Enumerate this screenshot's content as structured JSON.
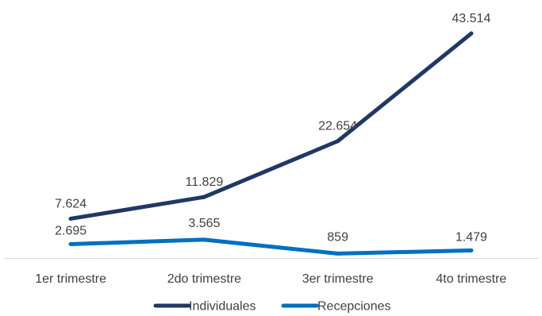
{
  "chart_data": {
    "type": "line",
    "categories": [
      "1er trimestre",
      "2do trimestre",
      "3er trimestre",
      "4to trimestre"
    ],
    "series": [
      {
        "name": "Individuales",
        "values": [
          7624,
          11829,
          22654,
          43514
        ],
        "labels": [
          "7.624",
          "11.829",
          "22.654",
          "43.514"
        ],
        "color": "#1f3864"
      },
      {
        "name": "Recepciones",
        "values": [
          2695,
          3565,
          859,
          1479
        ],
        "labels": [
          "2.695",
          "3.565",
          "859",
          "1.479"
        ],
        "color": "#0070c0"
      }
    ],
    "ylim": [
      0,
      50000
    ],
    "grid": false,
    "legend_position": "bottom",
    "axis_color": "#d9d9d9"
  }
}
